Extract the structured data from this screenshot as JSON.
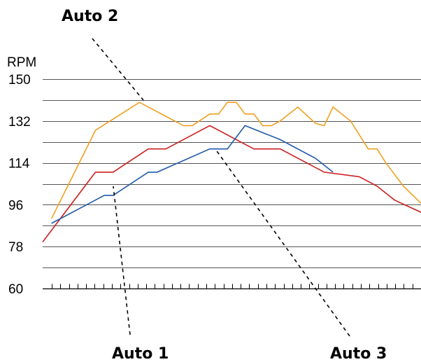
{
  "chart_data": {
    "type": "line",
    "ylabel": "RPM",
    "ylim": [
      60,
      150
    ],
    "yticks": [
      60,
      78,
      96,
      114,
      132,
      150
    ],
    "grid": "horizontal",
    "x_tick_count": 43,
    "x": [
      0,
      1,
      2,
      3,
      4,
      5,
      6,
      7,
      8,
      9,
      10,
      11,
      12,
      13,
      14,
      15,
      16,
      17,
      18,
      19,
      20,
      21,
      22,
      23,
      24,
      25,
      26,
      27,
      28,
      29,
      30,
      31,
      32,
      33,
      34,
      35,
      36,
      37,
      38,
      39,
      40,
      41,
      42,
      43
    ],
    "series": [
      {
        "name": "Auto 1",
        "color": "#cc1f1f",
        "x": [
          0,
          6,
          8,
          12,
          14,
          19,
          24,
          25,
          27,
          30,
          32,
          36,
          38,
          40,
          44
        ],
        "values": [
          80,
          110,
          110,
          120,
          120,
          130,
          120,
          120,
          120,
          114,
          110,
          108,
          104,
          98,
          91
        ]
      },
      {
        "name": "Auto 2",
        "color": "#f0a020",
        "x": [
          1,
          6,
          11,
          16,
          17,
          19,
          20,
          21,
          22,
          23,
          24,
          25,
          26,
          27,
          29,
          31,
          32,
          33,
          35,
          37,
          38,
          39,
          41,
          44
        ],
        "values": [
          90,
          128,
          140,
          130,
          130,
          135,
          135,
          140,
          140,
          135,
          135,
          130,
          130,
          132,
          138,
          131,
          130,
          138,
          132,
          120,
          120,
          114,
          104,
          93
        ]
      },
      {
        "name": "Auto 3",
        "color": "#1f5aa8",
        "x": [
          1,
          7,
          8,
          12,
          13,
          19,
          21,
          23,
          27,
          31,
          33
        ],
        "values": [
          88,
          100,
          100,
          110,
          110,
          120,
          120,
          130,
          124,
          116,
          110
        ]
      }
    ],
    "callouts": [
      {
        "label": "Auto 2",
        "series": "Auto 2"
      },
      {
        "label": "Auto 1",
        "series": "Auto 1"
      },
      {
        "label": "Auto 3",
        "series": "Auto 3"
      }
    ]
  }
}
